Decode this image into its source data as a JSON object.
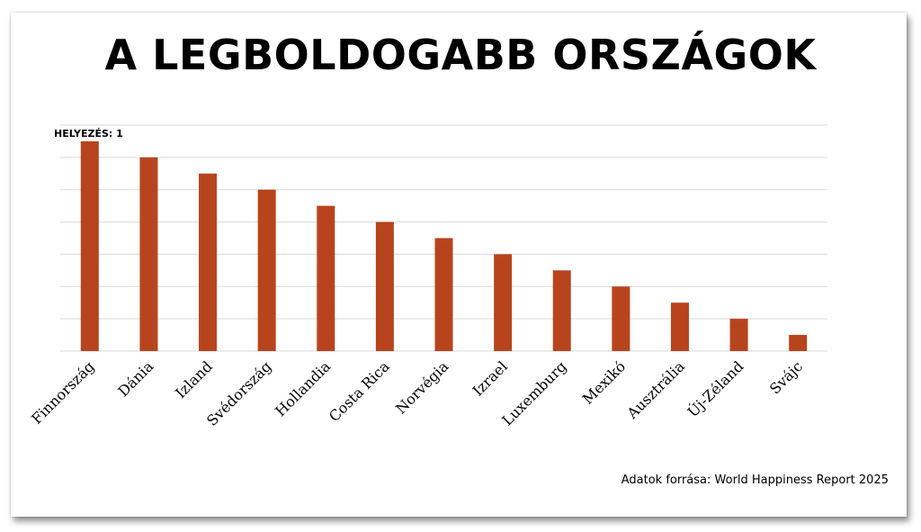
{
  "title": "A LEGBOLDOGABB ORSZÁGOK",
  "source": "Adatok forrása: World Happiness Report 2025",
  "colors": {
    "bar": "#b8441e",
    "grid": "#d9d9d9",
    "text": "#000000"
  },
  "chart_data": {
    "type": "bar",
    "title": "A LEGBOLDOGABB ORSZÁGOK",
    "annotation": "HELYEZÉS: 1",
    "categories": [
      "Finnország",
      "Dánia",
      "Izland",
      "Svédország",
      "Hollandia",
      "Costa Rica",
      "Norvégia",
      "Izrael",
      "Luxemburg",
      "Mexikó",
      "Ausztrália",
      "Új-Zéland",
      "Svájc"
    ],
    "values": [
      13,
      12,
      11,
      10,
      9,
      8,
      7,
      6,
      5,
      4,
      3,
      2,
      1
    ],
    "ylim": [
      0,
      14
    ],
    "grid": true,
    "xlabel": "",
    "ylabel": ""
  }
}
